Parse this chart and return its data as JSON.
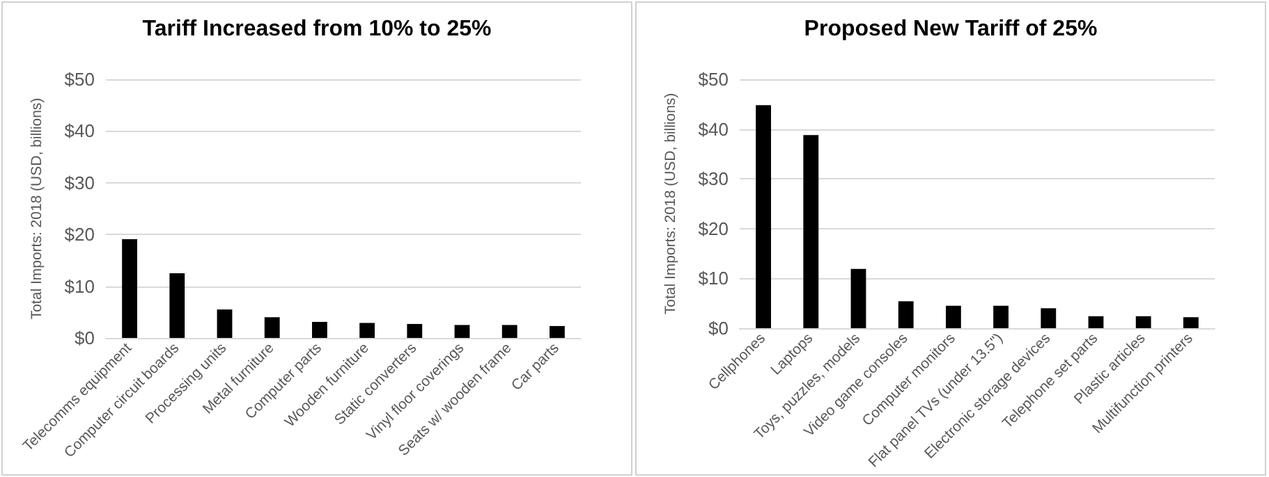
{
  "chart_data": [
    {
      "type": "bar",
      "title": "Tariff Increased from 10% to 25%",
      "ylabel": "Total Imports: 2018 (USD, billions)",
      "categories": [
        "Telecomms equipment",
        "Computer circuit boards",
        "Processing units",
        "Metal furniture",
        "Computer parts",
        "Wooden furniture",
        "Static converters",
        "Vinyl floor coverings",
        "Seats w/ wooden frame",
        "Car parts"
      ],
      "values": [
        19.1,
        12.5,
        5.5,
        4.0,
        3.1,
        2.9,
        2.7,
        2.5,
        2.5,
        2.3
      ],
      "color": "#000000",
      "ylim": [
        0,
        50
      ],
      "yticks": [
        {
          "value": 0,
          "label": "$0"
        },
        {
          "value": 10,
          "label": "$10"
        },
        {
          "value": 20,
          "label": "$20"
        },
        {
          "value": 30,
          "label": "$30"
        },
        {
          "value": 40,
          "label": "$40"
        },
        {
          "value": 50,
          "label": "$50"
        }
      ],
      "grid": "y"
    },
    {
      "type": "bar",
      "title": "Proposed New Tariff of 25%",
      "ylabel": "Total Imports: 2018 (USD, billions)",
      "categories": [
        "Cellphones",
        "Laptops",
        "Toys, puzzles, models",
        "Video game consoles",
        "Computer monitors",
        "Flat panel TVs (under 13.5\")",
        "Electronic storage devices",
        "Telephone set parts",
        "Plastic articles",
        "Multifunction printers"
      ],
      "values": [
        44.8,
        38.8,
        11.9,
        5.4,
        4.5,
        4.5,
        4.0,
        2.4,
        2.4,
        2.2
      ],
      "color": "#000000",
      "ylim": [
        0,
        50
      ],
      "yticks": [
        {
          "value": 0,
          "label": "$0"
        },
        {
          "value": 10,
          "label": "$10"
        },
        {
          "value": 20,
          "label": "$20"
        },
        {
          "value": 30,
          "label": "$30"
        },
        {
          "value": 40,
          "label": "$40"
        },
        {
          "value": 50,
          "label": "$50"
        }
      ],
      "grid": "y"
    }
  ]
}
